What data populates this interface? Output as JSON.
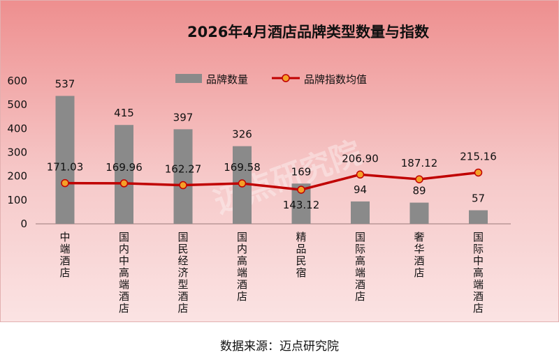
{
  "source": "数据来源：迈点研究院",
  "watermark": "迈点研究院",
  "chart_data": {
    "type": "bar",
    "title": "2026年4月酒店品牌类型数量与指数",
    "categories": [
      "中端酒店",
      "国内中高端酒店",
      "国民经济型酒店",
      "国内高端酒店",
      "精品民宿",
      "国际高端酒店",
      "奢华酒店",
      "国际中高端酒店"
    ],
    "ylim": [
      0,
      600
    ],
    "yticks": [
      0,
      100,
      200,
      300,
      400,
      500,
      600
    ],
    "legend_position": "top",
    "grid": false,
    "series": [
      {
        "name": "品牌数量",
        "type": "bar",
        "color": "#8a8a8a",
        "values": [
          537,
          415,
          397,
          326,
          169,
          94,
          89,
          57
        ],
        "labels": [
          "537",
          "415",
          "397",
          "326",
          "169",
          "94",
          "89",
          "57"
        ]
      },
      {
        "name": "品牌指数均值",
        "type": "line",
        "color": "#c00000",
        "marker_color": "#f4a028",
        "values": [
          171.03,
          169.96,
          162.27,
          169.58,
          143.12,
          206.9,
          187.12,
          215.16
        ],
        "labels": [
          "171.03",
          "169.96",
          "162.27",
          "169.58",
          "143.12",
          "206.90",
          "187.12",
          "215.16"
        ]
      }
    ]
  }
}
